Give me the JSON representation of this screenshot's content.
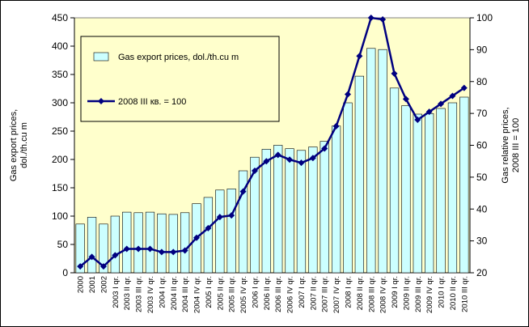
{
  "chart_data": {
    "type": "bar_line",
    "categories": [
      "2000",
      "2001",
      "2002",
      "2003 I qr.",
      "2003 II qr.",
      "2003 III qr.",
      "2003 IV qr.",
      "2004 I qr.",
      "2004 II qr.",
      "2004 III qr.",
      "2004 IV qr.",
      "2005 I qr.",
      "2005 II qr.",
      "2005 III qr.",
      "2005 IV qr.",
      "2006 I qr.",
      "2006 II qr.",
      "2006 III qr.",
      "2006 IV qr.",
      "2007 I qr.",
      "2007 II qr.",
      "2007 III qr.",
      "2007 IV qr.",
      "2008 I qr.",
      "2008 II qr.",
      "2008 III qr.",
      "2008 IV qr.",
      "2009 I qr.",
      "2009 II qr.",
      "2009 III qr.",
      "2009 IV qr.",
      "2010 I qr.",
      "2010 II qr.",
      "2010 III qr."
    ],
    "series": [
      {
        "name": "Gas export prices, dol./th.cu m",
        "type": "bar",
        "color": "#ccffff",
        "values": [
          86,
          98,
          86,
          100,
          107,
          106,
          107,
          104,
          103,
          106,
          122,
          133,
          146,
          148,
          180,
          204,
          218,
          225,
          219,
          216,
          222,
          232,
          259,
          300,
          347,
          396,
          394,
          326,
          295,
          280,
          281,
          290,
          300,
          310
        ]
      },
      {
        "name": "2008 III кв. = 100",
        "type": "line",
        "axis": "y2",
        "color": "#000080",
        "values": [
          22,
          25,
          22,
          25.5,
          27.5,
          27.5,
          27.5,
          26.5,
          26.5,
          27,
          31,
          34,
          37.5,
          38,
          45.5,
          52,
          55,
          57,
          55.5,
          54.5,
          56,
          59,
          66,
          76,
          88,
          100,
          99.5,
          82.5,
          74.5,
          68,
          70.5,
          73,
          75.5,
          78
        ]
      }
    ],
    "ylabel": [
      "Gas export prices,",
      "dol./th.cu m"
    ],
    "y2label": [
      "Gas relative prices,",
      "2008 III = 100"
    ],
    "ylim": [
      0,
      450
    ],
    "yticks": [
      0,
      50,
      100,
      150,
      200,
      250,
      300,
      350,
      400,
      450
    ],
    "y2lim": [
      20,
      100
    ],
    "y2ticks": [
      20,
      30,
      40,
      50,
      60,
      70,
      80,
      90,
      100
    ],
    "grid": false,
    "legend": "upper left",
    "background": "#ffffcc"
  }
}
